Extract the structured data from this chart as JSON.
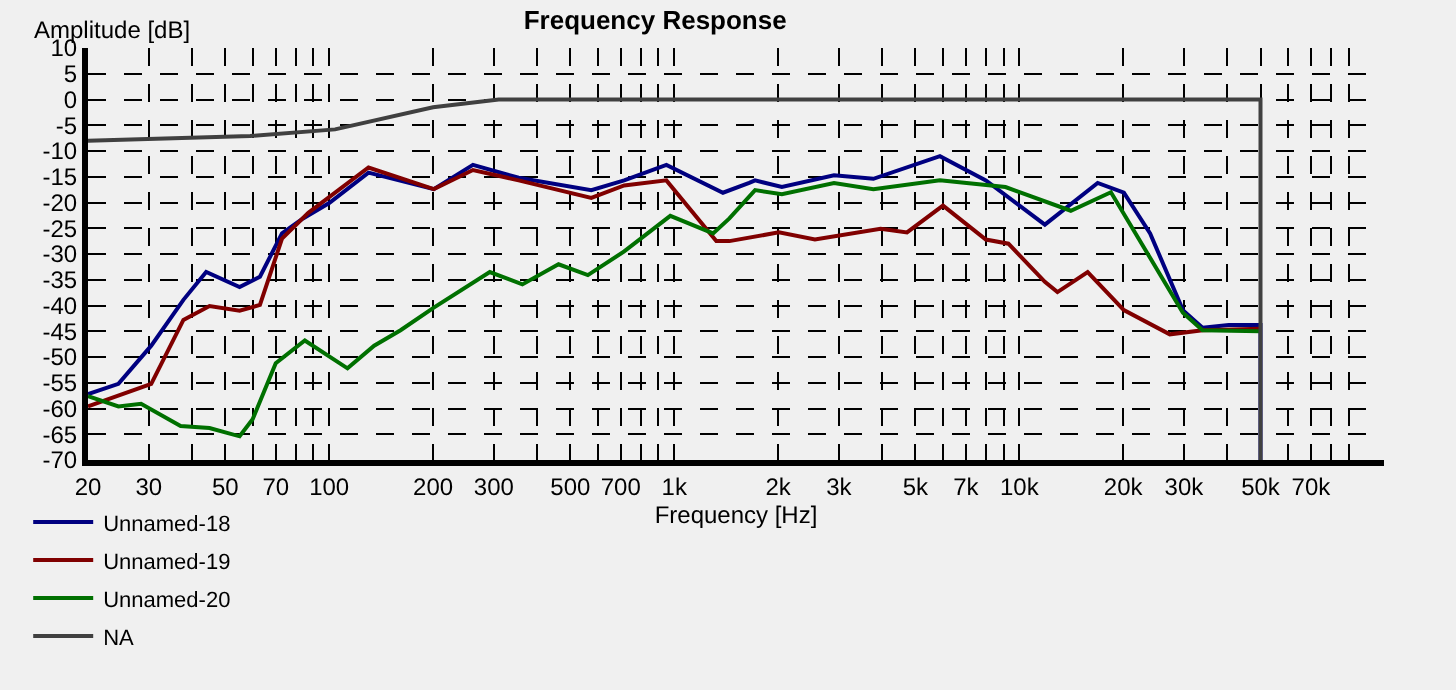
{
  "chart_data": {
    "type": "line",
    "title": "Frequency Response",
    "xlabel": "Frequency [Hz]",
    "ylabel": "Amplitude [dB]",
    "log": "x",
    "grid": true,
    "legend": "bottom left",
    "marker": "none",
    "line_style": "solid",
    "xlim": [
      20,
      114000
    ],
    "ylim": [
      -70,
      10
    ],
    "yticks": [
      -70,
      -65,
      -60,
      -55,
      -50,
      -45,
      -40,
      -35,
      -30,
      -25,
      -20,
      -15,
      -10,
      -5,
      0,
      5,
      10
    ],
    "xticks": [
      20,
      30,
      {
        "value": 40,
        "label": null
      },
      50,
      {
        "value": 60,
        "label": null
      },
      70,
      {
        "value": 80,
        "label": null
      },
      {
        "value": 90,
        "label": null
      },
      100,
      200,
      300,
      {
        "value": 400,
        "label": null
      },
      500,
      {
        "value": 600,
        "label": null
      },
      700,
      {
        "value": 800,
        "label": null
      },
      {
        "value": 900,
        "label": null
      },
      {
        "value": 1000,
        "label": "1k"
      },
      {
        "value": 2000,
        "label": "2k"
      },
      {
        "value": 3000,
        "label": "3k"
      },
      {
        "value": 4000,
        "label": null
      },
      {
        "value": 5000,
        "label": "5k"
      },
      {
        "value": 6000,
        "label": null
      },
      {
        "value": 7000,
        "label": "7k"
      },
      {
        "value": 8000,
        "label": null
      },
      {
        "value": 9000,
        "label": null
      },
      {
        "value": 10000,
        "label": "10k"
      },
      {
        "value": 20000,
        "label": "20k"
      },
      {
        "value": 30000,
        "label": "30k"
      },
      {
        "value": 40000,
        "label": null
      },
      {
        "value": 50000,
        "label": "50k"
      },
      {
        "value": 60000,
        "label": null
      },
      {
        "value": 70000,
        "label": "70k"
      },
      {
        "value": 80000,
        "label": null
      },
      {
        "value": 90000,
        "label": null
      }
    ],
    "series": [
      {
        "name": "Unnamed-18",
        "color": "#000080",
        "x": [
          20,
          24.5,
          30.5,
          37.8,
          44,
          55,
          63,
          73,
          84,
          100,
          130,
          201,
          261,
          354,
          575,
          716,
          949,
          1384,
          1649,
          1715,
          2051,
          2904,
          3777,
          5888,
          8000,
          11860,
          16870,
          20090,
          23940,
          29790,
          33960,
          40450,
          50000,
          50000
        ],
        "values": [
          -57.2,
          -55.2,
          -47.8,
          -38.9,
          -33.5,
          -36.4,
          -34.4,
          -26,
          -23.1,
          -20.1,
          -14.2,
          -17.4,
          -12.7,
          -15.2,
          -17.6,
          -15.7,
          -12.7,
          -18.1,
          -16.2,
          -15.7,
          -17,
          -14.7,
          -15.4,
          -11,
          -15.7,
          -24.3,
          -16.2,
          -18.1,
          -26,
          -40.9,
          -44.3,
          -43.8,
          -43.8,
          -70
        ]
      },
      {
        "name": "Unnamed-19",
        "color": "#800000",
        "x": [
          20,
          30.5,
          37.8,
          45,
          55,
          63,
          73,
          87,
          130,
          201,
          261,
          354,
          575,
          716,
          949,
          1324,
          1445,
          2010,
          2557,
          3962,
          4727,
          6010,
          8000,
          9300,
          11860,
          12900,
          15780,
          20090,
          27300,
          33960,
          50000
        ],
        "values": [
          -59.6,
          -55.2,
          -42.8,
          -40.1,
          -41,
          -39.9,
          -27,
          -22,
          -13.2,
          -17.4,
          -13.7,
          -15.7,
          -19.1,
          -16.7,
          -15.7,
          -27.5,
          -27.5,
          -25.8,
          -27.2,
          -25.1,
          -25.8,
          -20.6,
          -27.2,
          -28,
          -35.4,
          -37.4,
          -33.5,
          -40.9,
          -45.6,
          -44.8,
          -44.5
        ]
      },
      {
        "name": "Unnamed-20",
        "color": "#007000",
        "x": [
          20,
          24.5,
          28.5,
          37.1,
          45,
          55,
          60,
          70,
          85,
          113,
          135,
          161,
          201,
          292,
          363,
          462,
          562,
          716,
          974,
          1296,
          1445,
          1715,
          2051,
          2904,
          3777,
          5888,
          9120,
          14100,
          18430,
          29790,
          33960,
          50000
        ],
        "values": [
          -57.6,
          -59.6,
          -59.1,
          -63.4,
          -63.8,
          -65.4,
          -62.1,
          -51.2,
          -46.8,
          -52.2,
          -47.8,
          -44.8,
          -40.4,
          -33.5,
          -35.9,
          -32,
          -34.1,
          -29.5,
          -22.6,
          -26,
          -23.1,
          -17.6,
          -18.4,
          -16.2,
          -17.4,
          -15.7,
          -17,
          -21.6,
          -18,
          -41.4,
          -44.8,
          -45
        ]
      },
      {
        "name": "NA",
        "color": "#404040",
        "x": [
          20,
          59,
          104,
          200,
          310,
          400,
          50000,
          50000
        ],
        "values": [
          -8,
          -7.1,
          -5.8,
          -1.5,
          0,
          0,
          0,
          -70
        ]
      }
    ]
  }
}
